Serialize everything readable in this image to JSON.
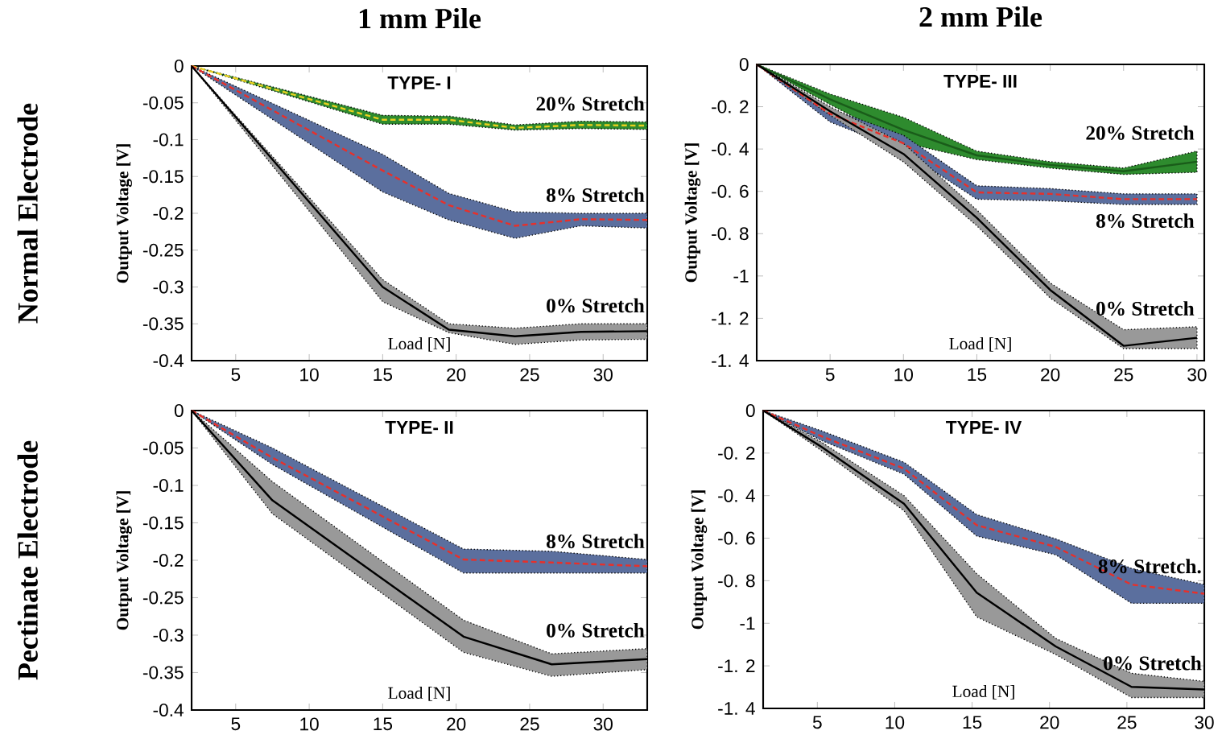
{
  "chart_data": [
    {
      "type": "line",
      "title": "1 mm Pile",
      "subtitle": "TYPE- I",
      "xlabel": "Load [N]",
      "ylabel": "Output Voltage [V]",
      "annotations": [
        "Normal Electrode"
      ],
      "x": [
        2,
        15,
        19.5,
        24,
        28.5,
        33
      ],
      "xlim": [
        2,
        33
      ],
      "xticks": [
        5,
        10,
        15,
        20,
        25,
        30
      ],
      "ylim": [
        -0.4,
        0
      ],
      "yticks": [
        -0.4,
        -0.35,
        -0.3,
        -0.25,
        -0.2,
        -0.15,
        -0.1,
        -0.05,
        0
      ],
      "marker": "none",
      "series": [
        {
          "name": "20% Stretch",
          "color": "#e8d020",
          "line_style": "dashed",
          "values": [
            0,
            -0.073,
            -0.073,
            -0.084,
            -0.08,
            -0.081
          ],
          "lower": [
            0,
            -0.079,
            -0.079,
            -0.087,
            -0.085,
            -0.086
          ],
          "upper": [
            0,
            -0.067,
            -0.068,
            -0.08,
            -0.075,
            -0.076
          ]
        },
        {
          "name": "8% Stretch",
          "color": "#e8302a",
          "line_style": "dashed",
          "values": [
            0,
            -0.142,
            -0.189,
            -0.217,
            -0.208,
            -0.209
          ],
          "lower": [
            0,
            -0.171,
            -0.209,
            -0.234,
            -0.217,
            -0.22
          ],
          "upper": [
            0,
            -0.12,
            -0.173,
            -0.198,
            -0.2,
            -0.2
          ]
        },
        {
          "name": "0% Stretch",
          "color": "#000000",
          "line_style": "solid",
          "values": [
            0,
            -0.3,
            -0.358,
            -0.367,
            -0.361,
            -0.36
          ],
          "lower": [
            0,
            -0.32,
            -0.362,
            -0.378,
            -0.372,
            -0.371
          ],
          "upper": [
            0,
            -0.29,
            -0.35,
            -0.356,
            -0.35,
            -0.35
          ]
        }
      ]
    },
    {
      "type": "line",
      "title": "2 mm Pile",
      "subtitle": "TYPE- III",
      "xlabel": "Load [N]",
      "ylabel": "Output Voltage [V]",
      "x": [
        0,
        5,
        10,
        15,
        20,
        25,
        30
      ],
      "xlim": [
        0,
        30.5
      ],
      "xticks": [
        5,
        10,
        15,
        20,
        25,
        30
      ],
      "ylim": [
        -1.4,
        0
      ],
      "yticks": [
        {
          "value": -1.4,
          "label": "-1. 4"
        },
        {
          "value": -1.2,
          "label": "-1. 2"
        },
        {
          "value": -1,
          "label": "-1"
        },
        {
          "value": -0.8,
          "label": "-0. 8"
        },
        {
          "value": -0.6,
          "label": "-0. 6"
        },
        {
          "value": -0.4,
          "label": "-0. 4"
        },
        {
          "value": -0.2,
          "label": "-0. 2"
        },
        0
      ],
      "marker": "none",
      "series": [
        {
          "name": "20% Stretch",
          "color": "#1a5c1a",
          "line_style": "solid",
          "values": [
            0,
            -0.165,
            -0.31,
            -0.43,
            -0.475,
            -0.505,
            -0.46
          ],
          "lower": [
            0,
            -0.19,
            -0.37,
            -0.45,
            -0.49,
            -0.52,
            -0.51
          ],
          "upper": [
            0,
            -0.14,
            -0.25,
            -0.41,
            -0.46,
            -0.49,
            -0.41
          ]
        },
        {
          "name": "8% Stretch",
          "color": "#e8302a",
          "line_style": "dashed",
          "values": [
            0,
            -0.234,
            -0.373,
            -0.605,
            -0.612,
            -0.637,
            -0.637
          ],
          "lower": [
            0,
            -0.272,
            -0.41,
            -0.637,
            -0.645,
            -0.662,
            -0.662
          ],
          "upper": [
            0,
            -0.209,
            -0.335,
            -0.574,
            -0.587,
            -0.612,
            -0.612
          ]
        },
        {
          "name": "0% Stretch",
          "color": "#000000",
          "line_style": "solid",
          "values": [
            0,
            -0.222,
            -0.423,
            -0.725,
            -1.066,
            -1.33,
            -1.292
          ],
          "lower": [
            0,
            -0.24,
            -0.461,
            -0.763,
            -1.104,
            -1.343,
            -1.343
          ],
          "upper": [
            0,
            -0.2,
            -0.373,
            -0.688,
            -1.033,
            -1.254,
            -1.24
          ]
        }
      ]
    },
    {
      "type": "line",
      "subtitle": "TYPE- II",
      "xlabel": "Load [N]",
      "ylabel": "Output Voltage [V]",
      "annotations": [
        "Pectinate Electrode"
      ],
      "x": [
        2,
        7.5,
        20.5,
        26.5,
        33
      ],
      "xlim": [
        2,
        33
      ],
      "xticks": [
        5,
        10,
        15,
        20,
        25,
        30
      ],
      "ylim": [
        -0.4,
        0
      ],
      "yticks": [
        -0.4,
        -0.35,
        -0.3,
        -0.25,
        -0.2,
        -0.15,
        -0.1,
        -0.05,
        0
      ],
      "marker": "none",
      "series": [
        {
          "name": "8% Stretch",
          "color": "#e8302a",
          "line_style": "dashed",
          "values": [
            0,
            -0.063,
            -0.199,
            -0.203,
            -0.208
          ],
          "lower": [
            0,
            -0.072,
            -0.217,
            -0.217,
            -0.217
          ],
          "upper": [
            0,
            -0.05,
            -0.185,
            -0.188,
            -0.199
          ]
        },
        {
          "name": "0% Stretch",
          "color": "#000000",
          "line_style": "solid",
          "values": [
            0,
            -0.12,
            -0.302,
            -0.339,
            -0.332
          ],
          "lower": [
            0,
            -0.138,
            -0.323,
            -0.355,
            -0.346
          ],
          "upper": [
            0,
            -0.095,
            -0.28,
            -0.325,
            -0.318
          ]
        }
      ]
    },
    {
      "type": "line",
      "subtitle": "TYPE- IV",
      "xlabel": "Load [N]",
      "ylabel": "Output Voltage [V]",
      "x": [
        1.5,
        5.3,
        10.6,
        15.3,
        20.4,
        25.3,
        30
      ],
      "xlim": [
        1.5,
        30
      ],
      "xticks": [
        5,
        10,
        15,
        20,
        25,
        30
      ],
      "ylim": [
        -1.4,
        0
      ],
      "yticks": [
        {
          "value": -1.4,
          "label": "-1. 4"
        },
        {
          "value": -1.2,
          "label": "-1. 2"
        },
        {
          "value": -1,
          "label": "-1"
        },
        {
          "value": -0.8,
          "label": "-0. 8"
        },
        {
          "value": -0.6,
          "label": "-0. 6"
        },
        {
          "value": -0.4,
          "label": "-0. 4"
        },
        {
          "value": -0.2,
          "label": "-0. 2"
        },
        0
      ],
      "marker": "none",
      "series": [
        {
          "name": "8% Stretch.",
          "color": "#e8302a",
          "line_style": "dashed",
          "values": [
            0,
            -0.122,
            -0.273,
            -0.539,
            -0.641,
            -0.818,
            -0.861
          ],
          "lower": [
            0,
            -0.142,
            -0.299,
            -0.59,
            -0.678,
            -0.906,
            -0.906
          ],
          "upper": [
            0,
            -0.096,
            -0.243,
            -0.489,
            -0.603,
            -0.742,
            -0.818
          ]
        },
        {
          "name": "0% Stretch",
          "color": "#000000",
          "line_style": "solid",
          "values": [
            0,
            -0.172,
            -0.438,
            -0.856,
            -1.109,
            -1.299,
            -1.311
          ],
          "lower": [
            0,
            -0.19,
            -0.471,
            -0.97,
            -1.147,
            -1.349,
            -1.349
          ],
          "upper": [
            0,
            -0.15,
            -0.4,
            -0.767,
            -1.071,
            -1.235,
            -1.273
          ]
        }
      ]
    }
  ]
}
